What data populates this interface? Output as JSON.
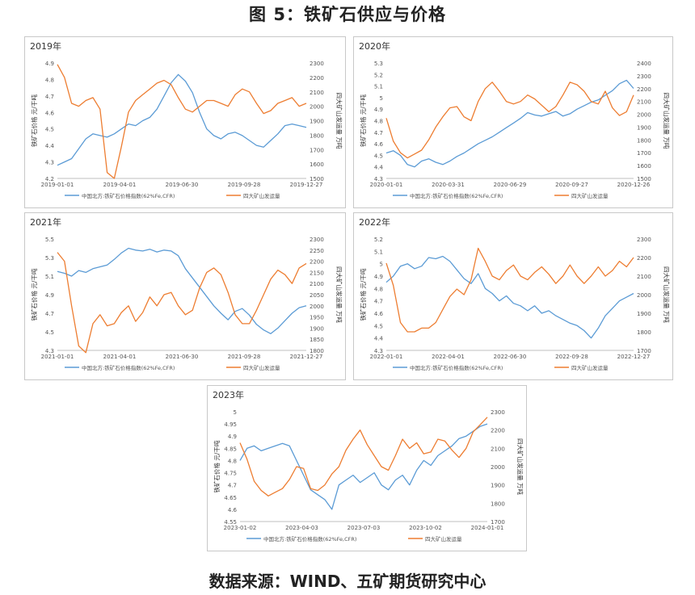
{
  "page": {
    "title": "图 5：铁矿石供应与价格",
    "source": "数据来源：WIND、五矿期货研究中心"
  },
  "chart_data": [
    {
      "type": "line",
      "title": "2019年",
      "y_left_label": "铁矿石价格 元/干吨",
      "y_right_label": "四大矿山发运量 万吨",
      "x_ticks": [
        "2019-01-01",
        "2019-04-01",
        "2019-06-30",
        "2019-09-28",
        "2019-12-27"
      ],
      "y_left_ticks": [
        "4.2",
        "4.3",
        "4.4",
        "4.5",
        "4.6",
        "4.7",
        "4.8",
        "4.9"
      ],
      "y_right_ticks": [
        "1500",
        "1600",
        "1700",
        "1800",
        "1900",
        "2000",
        "2100",
        "2200",
        "2300"
      ],
      "ylim_left": [
        4.2,
        4.9
      ],
      "ylim_right": [
        1500,
        2300
      ],
      "legend": [
        "中国北方:铁矿石价格指数(62%Fe,CFR)",
        "四大矿山发运量"
      ],
      "series": [
        {
          "name": "中国北方:铁矿石价格指数(62%Fe,CFR)",
          "axis": "left",
          "color": "#5b9bd5",
          "values": [
            4.28,
            4.3,
            4.32,
            4.38,
            4.44,
            4.47,
            4.46,
            4.45,
            4.47,
            4.5,
            4.53,
            4.52,
            4.55,
            4.57,
            4.62,
            4.7,
            4.78,
            4.83,
            4.79,
            4.72,
            4.6,
            4.5,
            4.46,
            4.44,
            4.47,
            4.48,
            4.46,
            4.43,
            4.4,
            4.39,
            4.43,
            4.47,
            4.52,
            4.53,
            4.52,
            4.51
          ]
        },
        {
          "name": "四大矿山发运量",
          "axis": "right",
          "color": "#ed7d31",
          "values": [
            2290,
            2200,
            2020,
            2000,
            2040,
            2060,
            1980,
            1540,
            1500,
            1720,
            1960,
            2040,
            2080,
            2120,
            2160,
            2180,
            2150,
            2060,
            1980,
            1960,
            2000,
            2040,
            2040,
            2020,
            2000,
            2080,
            2120,
            2100,
            2020,
            1950,
            1970,
            2020,
            2040,
            2060,
            2000,
            2020
          ]
        }
      ]
    },
    {
      "type": "line",
      "title": "2020年",
      "y_left_label": "铁矿石价格 元/干吨",
      "y_right_label": "四大矿山发运量 万吨",
      "x_ticks": [
        "2020-01-01",
        "2020-03-31",
        "2020-06-29",
        "2020-09-27",
        "2020-12-26"
      ],
      "y_left_ticks": [
        "4.3",
        "4.4",
        "4.5",
        "4.6",
        "4.7",
        "4.8",
        "4.9",
        "5",
        "5.1",
        "5.2",
        "5.3"
      ],
      "y_right_ticks": [
        "1500",
        "1600",
        "1700",
        "1800",
        "1900",
        "2000",
        "2100",
        "2200",
        "2300",
        "2400"
      ],
      "ylim_left": [
        4.3,
        5.3
      ],
      "ylim_right": [
        1500,
        2400
      ],
      "legend": [
        "中国北方:铁矿石价格指数(62%Fe,CFR)",
        "四大矿山发运量"
      ],
      "series": [
        {
          "name": "中国北方:铁矿石价格指数(62%Fe,CFR)",
          "axis": "left",
          "color": "#5b9bd5",
          "values": [
            4.52,
            4.54,
            4.5,
            4.42,
            4.4,
            4.45,
            4.47,
            4.44,
            4.42,
            4.45,
            4.49,
            4.52,
            4.56,
            4.6,
            4.63,
            4.66,
            4.7,
            4.74,
            4.78,
            4.82,
            4.87,
            4.85,
            4.84,
            4.86,
            4.88,
            4.84,
            4.86,
            4.9,
            4.93,
            4.96,
            4.98,
            5.02,
            5.06,
            5.12,
            5.15,
            5.08
          ]
        },
        {
          "name": "四大矿山发运量",
          "axis": "right",
          "color": "#ed7d31",
          "values": [
            1970,
            1790,
            1700,
            1660,
            1690,
            1720,
            1800,
            1900,
            1980,
            2050,
            2060,
            1980,
            1950,
            2100,
            2200,
            2250,
            2180,
            2100,
            2080,
            2100,
            2150,
            2120,
            2070,
            2020,
            2060,
            2150,
            2250,
            2230,
            2180,
            2100,
            2080,
            2180,
            2050,
            1990,
            2020,
            2150
          ]
        }
      ]
    },
    {
      "type": "line",
      "title": "2021年",
      "y_left_label": "铁矿石价格 元/干吨",
      "y_right_label": "四大矿山发运量 万吨",
      "x_ticks": [
        "2021-01-01",
        "2021-04-01",
        "2021-06-30",
        "2021-09-28",
        "2021-12-27"
      ],
      "y_left_ticks": [
        "4.3",
        "4.5",
        "4.7",
        "4.9",
        "5.1",
        "5.3",
        "5.5"
      ],
      "y_right_ticks": [
        "1800",
        "1850",
        "1900",
        "1950",
        "2000",
        "2050",
        "2100",
        "2150",
        "2200",
        "2250",
        "2300"
      ],
      "ylim_left": [
        4.3,
        5.5
      ],
      "ylim_right": [
        1800,
        2300
      ],
      "legend": [
        "中国北方:铁矿石价格指数(62%Fe,CFR)",
        "四大矿山发运量"
      ],
      "series": [
        {
          "name": "中国北方:铁矿石价格指数(62%Fe,CFR)",
          "axis": "left",
          "color": "#5b9bd5",
          "values": [
            5.15,
            5.13,
            5.1,
            5.16,
            5.14,
            5.18,
            5.2,
            5.22,
            5.28,
            5.35,
            5.4,
            5.38,
            5.37,
            5.39,
            5.36,
            5.38,
            5.37,
            5.32,
            5.18,
            5.08,
            4.98,
            4.88,
            4.78,
            4.7,
            4.63,
            4.72,
            4.75,
            4.68,
            4.58,
            4.52,
            4.48,
            4.54,
            4.62,
            4.7,
            4.76,
            4.78
          ]
        },
        {
          "name": "四大矿山发运量",
          "axis": "right",
          "color": "#ed7d31",
          "values": [
            2240,
            2200,
            2000,
            1820,
            1790,
            1920,
            1960,
            1910,
            1920,
            1970,
            2000,
            1930,
            1970,
            2040,
            2000,
            2050,
            2060,
            2000,
            1960,
            1980,
            2080,
            2150,
            2170,
            2140,
            2060,
            1960,
            1920,
            1920,
            1980,
            2050,
            2120,
            2160,
            2140,
            2100,
            2170,
            2190
          ]
        }
      ]
    },
    {
      "type": "line",
      "title": "2022年",
      "y_left_label": "铁矿石价格 元/干吨",
      "y_right_label": "四大矿山发运量 万吨",
      "x_ticks": [
        "2022-01-01",
        "2022-04-01",
        "2022-06-30",
        "2022-09-28",
        "2022-12-27"
      ],
      "y_left_ticks": [
        "4.3",
        "4.4",
        "4.5",
        "4.6",
        "4.7",
        "4.8",
        "4.9",
        "5",
        "5.1",
        "5.2"
      ],
      "y_right_ticks": [
        "1700",
        "1800",
        "1900",
        "2000",
        "2100",
        "2200",
        "2300"
      ],
      "ylim_left": [
        4.3,
        5.2
      ],
      "ylim_right": [
        1700,
        2300
      ],
      "legend": [
        "中国北方:铁矿石价格指数(62%Fe,CFR)",
        "四大矿山发运量"
      ],
      "series": [
        {
          "name": "中国北方:铁矿石价格指数(62%Fe,CFR)",
          "axis": "left",
          "color": "#5b9bd5",
          "values": [
            4.85,
            4.9,
            4.98,
            5.0,
            4.96,
            4.98,
            5.05,
            5.04,
            5.06,
            5.02,
            4.95,
            4.88,
            4.84,
            4.92,
            4.8,
            4.76,
            4.7,
            4.74,
            4.68,
            4.66,
            4.62,
            4.66,
            4.6,
            4.62,
            4.58,
            4.55,
            4.52,
            4.5,
            4.46,
            4.4,
            4.48,
            4.58,
            4.64,
            4.7,
            4.73,
            4.76
          ]
        },
        {
          "name": "四大矿山发运量",
          "axis": "right",
          "color": "#ed7d31",
          "values": [
            2170,
            2050,
            1850,
            1800,
            1800,
            1820,
            1820,
            1850,
            1920,
            1990,
            2030,
            2000,
            2080,
            2250,
            2180,
            2100,
            2080,
            2130,
            2160,
            2100,
            2080,
            2120,
            2150,
            2110,
            2060,
            2100,
            2160,
            2100,
            2060,
            2100,
            2150,
            2100,
            2130,
            2180,
            2150,
            2200
          ]
        }
      ]
    },
    {
      "type": "line",
      "title": "2023年",
      "y_left_label": "铁矿石价格 元/干吨",
      "y_right_label": "四大矿山发运量 万吨",
      "x_ticks": [
        "2023-01-02",
        "2023-04-03",
        "2023-07-03",
        "2023-10-02",
        "2024-01-01"
      ],
      "y_left_ticks": [
        "4.55",
        "4.6",
        "4.65",
        "4.7",
        "4.75",
        "4.8",
        "4.85",
        "4.9",
        "4.95",
        "5"
      ],
      "y_right_ticks": [
        "1700",
        "1800",
        "1900",
        "2000",
        "2100",
        "2200",
        "2300"
      ],
      "ylim_left": [
        4.55,
        5.0
      ],
      "ylim_right": [
        1700,
        2300
      ],
      "legend": [
        "中国北方:铁矿石价格指数(62%Fe,CFR)",
        "四大矿山发运量"
      ],
      "series": [
        {
          "name": "中国北方:铁矿石价格指数(62%Fe,CFR)",
          "axis": "left",
          "color": "#5b9bd5",
          "values": [
            4.8,
            4.85,
            4.86,
            4.84,
            4.85,
            4.86,
            4.87,
            4.86,
            4.8,
            4.74,
            4.68,
            4.66,
            4.64,
            4.6,
            4.7,
            4.72,
            4.74,
            4.71,
            4.73,
            4.75,
            4.7,
            4.68,
            4.72,
            4.74,
            4.7,
            4.76,
            4.8,
            4.78,
            4.82,
            4.84,
            4.86,
            4.89,
            4.9,
            4.92,
            4.94,
            4.95
          ]
        },
        {
          "name": "四大矿山发运量",
          "axis": "right",
          "color": "#ed7d31",
          "values": [
            2130,
            2040,
            1920,
            1870,
            1840,
            1860,
            1880,
            1930,
            2000,
            1990,
            1880,
            1870,
            1900,
            1960,
            2000,
            2090,
            2150,
            2200,
            2120,
            2060,
            2000,
            1980,
            2060,
            2150,
            2100,
            2130,
            2070,
            2080,
            2150,
            2140,
            2090,
            2050,
            2100,
            2190,
            2230,
            2270
          ]
        }
      ]
    }
  ]
}
